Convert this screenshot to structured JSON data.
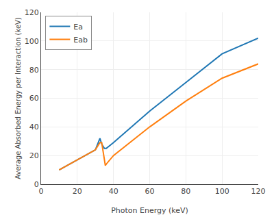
{
  "chart_data": {
    "type": "line",
    "xlabel": "Photon Energy (keV)",
    "ylabel": "Average Absorbed Energy per Interaction (keV)",
    "series": [
      {
        "name": "Ea",
        "x": [
          10,
          30,
          32.5,
          33.5,
          35,
          36,
          40,
          60,
          80,
          100,
          120
        ],
        "values": [
          10,
          24,
          32,
          28,
          25,
          25,
          29,
          51,
          71,
          91,
          102
        ]
      },
      {
        "name": "Eab",
        "x": [
          10,
          30,
          32.5,
          33.5,
          35.5,
          36,
          40,
          60,
          80,
          100,
          120
        ],
        "values": [
          10,
          24,
          29,
          29,
          13,
          14,
          20,
          40,
          58,
          74,
          84
        ]
      }
    ],
    "xlim": [
      0,
      120
    ],
    "ylim": [
      0,
      120
    ],
    "xticks": [
      0,
      20,
      40,
      60,
      80,
      100,
      120
    ],
    "yticks": [
      0,
      20,
      40,
      60,
      80,
      100,
      120
    ],
    "grid": true,
    "legend": "upper left"
  }
}
